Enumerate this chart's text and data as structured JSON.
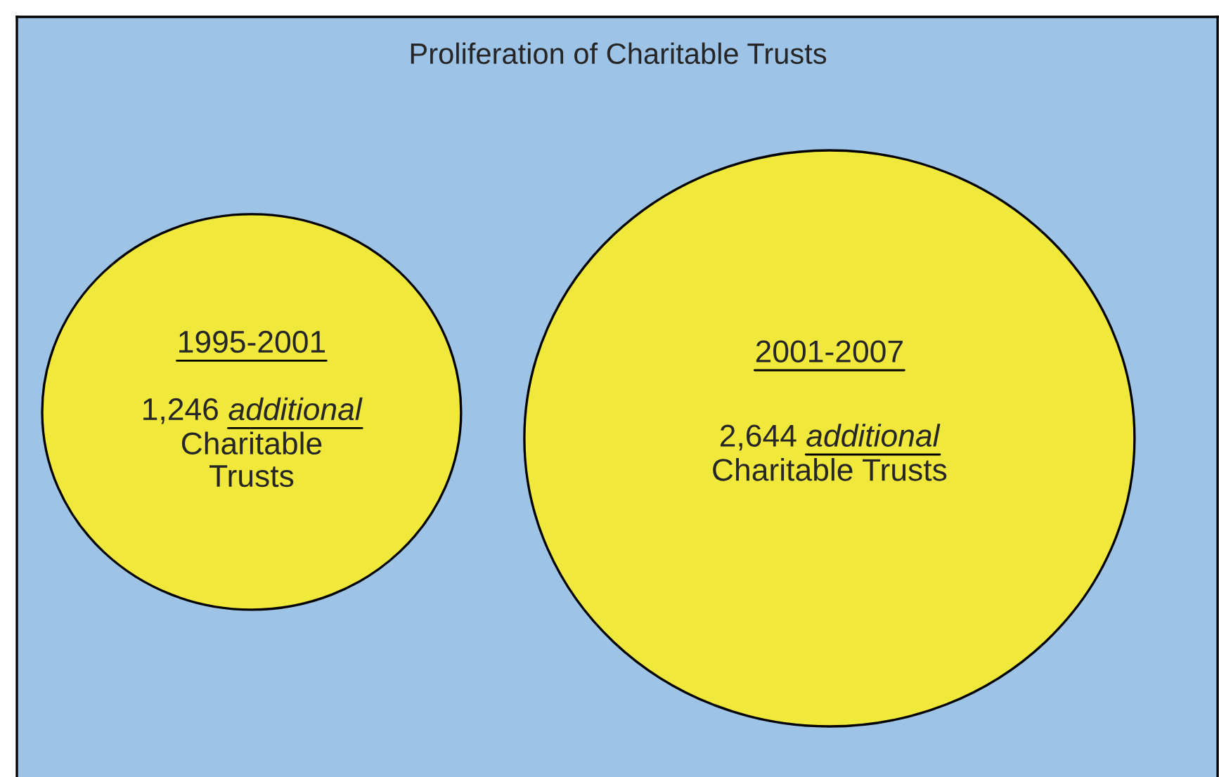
{
  "chart_data": {
    "type": "other",
    "title": "Proliferation of Charitable Trusts",
    "categories": [
      "1995-2001",
      "2001-2007"
    ],
    "values": [
      1246,
      2644
    ],
    "value_labels": [
      "1,246",
      "2,644"
    ],
    "colors": [
      "#f0e93c",
      "#f0e93c"
    ],
    "annotations": [
      "additional",
      "Charitable\nTrusts",
      "additional",
      "Charitable Trusts"
    ]
  }
}
